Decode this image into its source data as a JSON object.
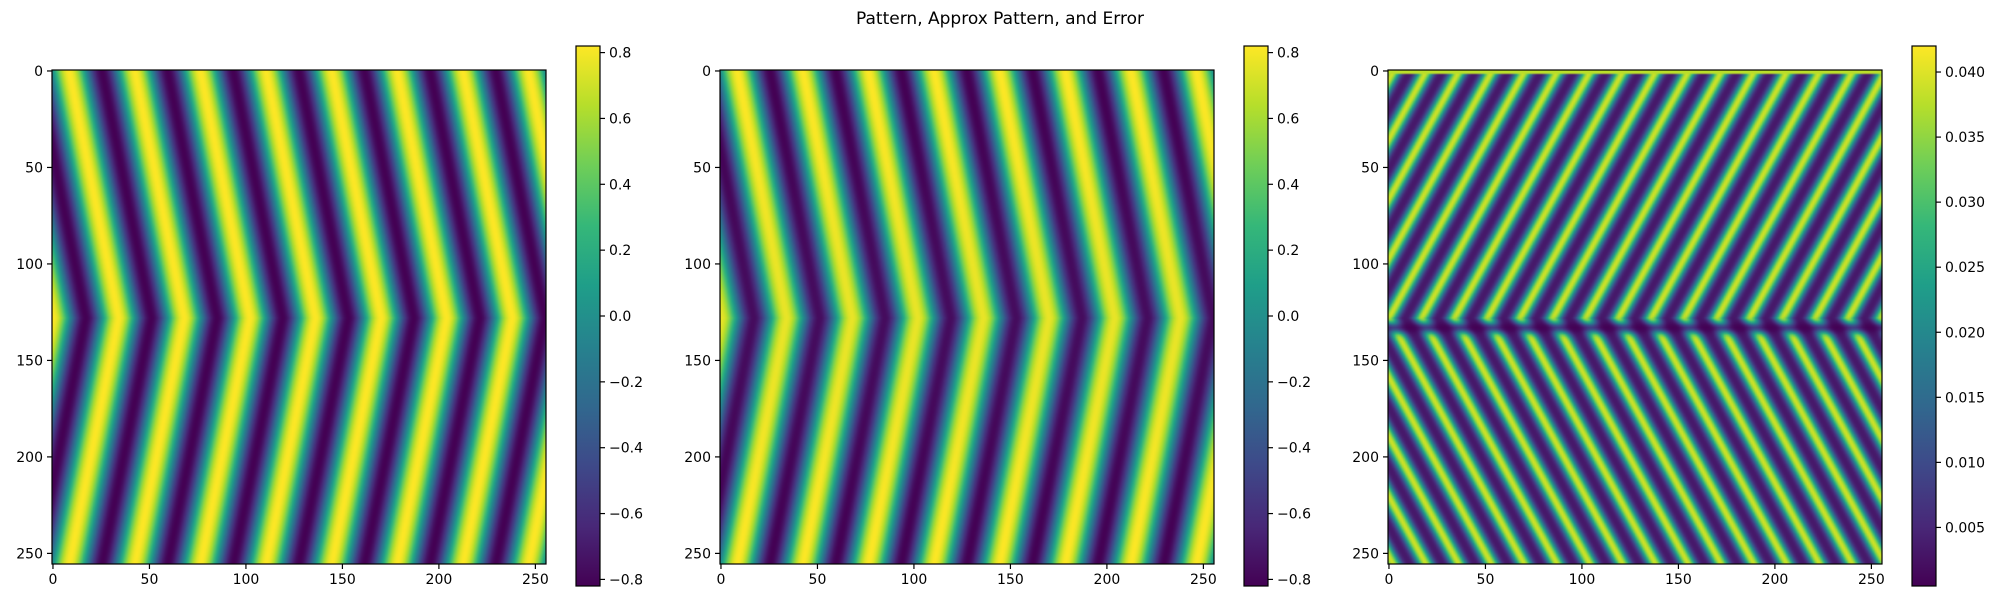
{
  "figure": {
    "title": "Pattern, Approx Pattern, and Error"
  },
  "colors": {
    "viridis": [
      "#440154",
      "#482878",
      "#3e4989",
      "#31688e",
      "#26828e",
      "#1f9e89",
      "#35b779",
      "#6ece58",
      "#b5de2b",
      "#fde725"
    ],
    "axis": "#000000"
  },
  "chart_data": [
    {
      "type": "heatmap",
      "title": "",
      "colormap": "viridis",
      "image_shape": [
        256,
        256
      ],
      "pattern": "chevron stripes, apex at row 128, pointing left",
      "x_ticks": [
        0,
        50,
        100,
        150,
        200,
        250
      ],
      "y_ticks": [
        0,
        50,
        100,
        150,
        200,
        250
      ],
      "xlim": [
        0,
        255
      ],
      "ylim": [
        255,
        0
      ],
      "colorbar": {
        "range": [
          -0.82,
          0.82
        ],
        "ticks": [
          0.8,
          0.6,
          0.4,
          0.2,
          0.0,
          -0.2,
          -0.4,
          -0.6,
          -0.8
        ],
        "tick_labels": [
          "0.8",
          "0.6",
          "0.4",
          "0.2",
          "0.0",
          "−0.2",
          "−0.4",
          "−0.6",
          "−0.8"
        ]
      },
      "model": {
        "period": 34,
        "slope": 0.2,
        "apex_row": 128,
        "amplitude": 0.82
      }
    },
    {
      "type": "heatmap",
      "title": "",
      "colormap": "viridis",
      "image_shape": [
        256,
        256
      ],
      "pattern": "chevron stripes, apex at row 128, pointing left",
      "x_ticks": [
        0,
        50,
        100,
        150,
        200,
        250
      ],
      "y_ticks": [
        0,
        50,
        100,
        150,
        200,
        250
      ],
      "xlim": [
        0,
        255
      ],
      "ylim": [
        255,
        0
      ],
      "colorbar": {
        "range": [
          -0.82,
          0.82
        ],
        "ticks": [
          0.8,
          0.6,
          0.4,
          0.2,
          0.0,
          -0.2,
          -0.4,
          -0.6,
          -0.8
        ],
        "tick_labels": [
          "0.8",
          "0.6",
          "0.4",
          "0.2",
          "0.0",
          "−0.2",
          "−0.4",
          "−0.6",
          "−0.8"
        ]
      },
      "model": {
        "period": 34,
        "slope": 0.2,
        "apex_row": 128,
        "amplitude": 0.82
      }
    },
    {
      "type": "heatmap",
      "title": "",
      "colormap": "viridis",
      "image_shape": [
        256,
        256
      ],
      "pattern": "absolute error, fine slanted stripes with band near row 128",
      "x_ticks": [
        0,
        50,
        100,
        150,
        200,
        250
      ],
      "y_ticks": [
        0,
        50,
        100,
        150,
        200,
        250
      ],
      "xlim": [
        0,
        255
      ],
      "ylim": [
        255,
        0
      ],
      "colorbar": {
        "range": [
          0.0005,
          0.042
        ],
        "ticks": [
          0.04,
          0.035,
          0.03,
          0.025,
          0.02,
          0.015,
          0.01,
          0.005
        ],
        "tick_labels": [
          "0.040",
          "0.035",
          "0.030",
          "0.025",
          "0.020",
          "0.015",
          "0.010",
          "0.005"
        ]
      },
      "model": {
        "period": 17,
        "slope": 0.2,
        "apex_row": 128,
        "amplitude": 0.042
      }
    }
  ]
}
